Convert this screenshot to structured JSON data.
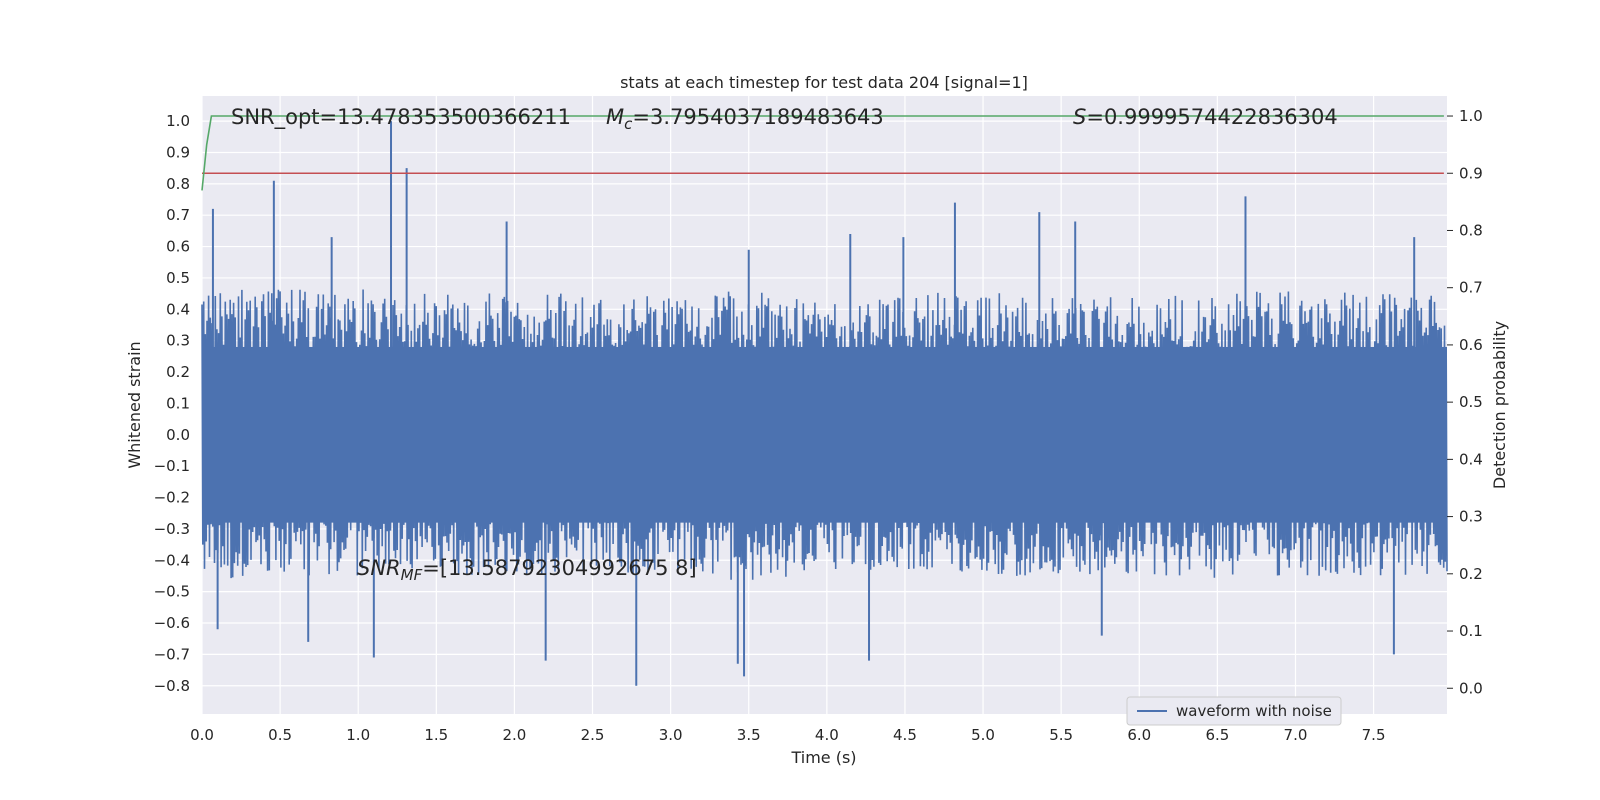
{
  "chart_data": {
    "type": "line",
    "title": "stats at each timestep for test data 204 [signal=1]",
    "xlabel": "Time (s)",
    "ylabel_left": "Whitened strain",
    "ylabel_right": "Detection probability",
    "xlim": [
      0.0,
      7.97
    ],
    "ylim_left": [
      -0.89,
      1.08
    ],
    "ylim_right": [
      -0.045,
      1.035
    ],
    "x_ticks": [
      "0.0",
      "0.5",
      "1.0",
      "1.5",
      "2.0",
      "2.5",
      "3.0",
      "3.5",
      "4.0",
      "4.5",
      "5.0",
      "5.5",
      "6.0",
      "6.5",
      "7.0",
      "7.5"
    ],
    "y_left_ticks": [
      "−0.8",
      "−0.7",
      "−0.6",
      "−0.5",
      "−0.4",
      "−0.3",
      "−0.2",
      "−0.1",
      "0.0",
      "0.1",
      "0.2",
      "0.3",
      "0.4",
      "0.5",
      "0.6",
      "0.7",
      "0.8",
      "0.9",
      "1.0"
    ],
    "y_right_ticks": [
      "0.0",
      "0.1",
      "0.2",
      "0.3",
      "0.4",
      "0.5",
      "0.6",
      "0.7",
      "0.8",
      "0.9",
      "1.0"
    ],
    "grid": true,
    "legend_position": "lower-right",
    "colors": {
      "plot_background": "#eaeaf2",
      "grid": "#ffffff",
      "waveform": "#4c72b0",
      "detection_probability": "#55a868",
      "threshold": "#c44e52"
    },
    "series": [
      {
        "name": "waveform with noise",
        "axis": "left",
        "kind": "dense noisy waveform",
        "envelope_x": [
          0.0,
          0.5,
          1.0,
          1.5,
          2.0,
          2.5,
          3.0,
          3.5,
          4.0,
          4.5,
          5.0,
          5.5,
          6.0,
          6.5,
          7.0,
          7.5,
          7.97
        ],
        "envelope_upper": [
          0.45,
          0.48,
          0.47,
          0.45,
          0.47,
          0.44,
          0.45,
          0.46,
          0.42,
          0.45,
          0.46,
          0.45,
          0.45,
          0.46,
          0.46,
          0.45,
          0.45
        ],
        "envelope_lower": [
          -0.45,
          -0.47,
          -0.45,
          -0.44,
          -0.46,
          -0.44,
          -0.45,
          -0.47,
          -0.45,
          -0.44,
          -0.45,
          -0.45,
          -0.45,
          -0.46,
          -0.45,
          -0.46,
          -0.45
        ],
        "peaks": [
          {
            "x": 0.07,
            "y": 0.72
          },
          {
            "x": 0.46,
            "y": 0.81
          },
          {
            "x": 0.83,
            "y": 0.63
          },
          {
            "x": 1.21,
            "y": 1.0
          },
          {
            "x": 1.31,
            "y": 0.85
          },
          {
            "x": 1.95,
            "y": 0.68
          },
          {
            "x": 3.5,
            "y": 0.59
          },
          {
            "x": 4.15,
            "y": 0.64
          },
          {
            "x": 4.49,
            "y": 0.63
          },
          {
            "x": 4.82,
            "y": 0.74
          },
          {
            "x": 5.36,
            "y": 0.71
          },
          {
            "x": 5.59,
            "y": 0.68
          },
          {
            "x": 6.68,
            "y": 0.76
          },
          {
            "x": 7.76,
            "y": 0.63
          },
          {
            "x": 0.1,
            "y": -0.62
          },
          {
            "x": 0.68,
            "y": -0.66
          },
          {
            "x": 1.1,
            "y": -0.71
          },
          {
            "x": 2.2,
            "y": -0.72
          },
          {
            "x": 2.78,
            "y": -0.8
          },
          {
            "x": 3.43,
            "y": -0.73
          },
          {
            "x": 3.47,
            "y": -0.77
          },
          {
            "x": 4.27,
            "y": -0.72
          },
          {
            "x": 5.76,
            "y": -0.64
          },
          {
            "x": 7.63,
            "y": -0.7
          }
        ]
      },
      {
        "name": "",
        "axis": "right",
        "kind": "detection probability",
        "x": [
          0.0,
          0.03,
          0.06,
          0.1,
          7.95
        ],
        "y": [
          0.87,
          0.95,
          1.0,
          1.0,
          1.0
        ]
      },
      {
        "name": "",
        "axis": "right",
        "kind": "threshold",
        "x": [
          0.0,
          7.95
        ],
        "y": [
          0.9,
          0.9
        ]
      }
    ],
    "annotations": [
      {
        "id": "snr_opt",
        "text": "SNR_opt=13.478353500366211"
      },
      {
        "id": "mc_sym",
        "text": "M"
      },
      {
        "id": "mc_sub",
        "text": "c"
      },
      {
        "id": "mc_val",
        "text": "=3.7954037189483643"
      },
      {
        "id": "s_sym",
        "text": "S"
      },
      {
        "id": "s_val",
        "text": "=0.9999574422836304"
      },
      {
        "id": "snrmf_sym",
        "text": "SNR"
      },
      {
        "id": "snrmf_sub",
        "text": "MF"
      },
      {
        "id": "snrmf_val",
        "text": "=[13.58792304992675 8]"
      }
    ],
    "legend": [
      {
        "label": "waveform with noise",
        "color": "#4c72b0"
      }
    ]
  }
}
